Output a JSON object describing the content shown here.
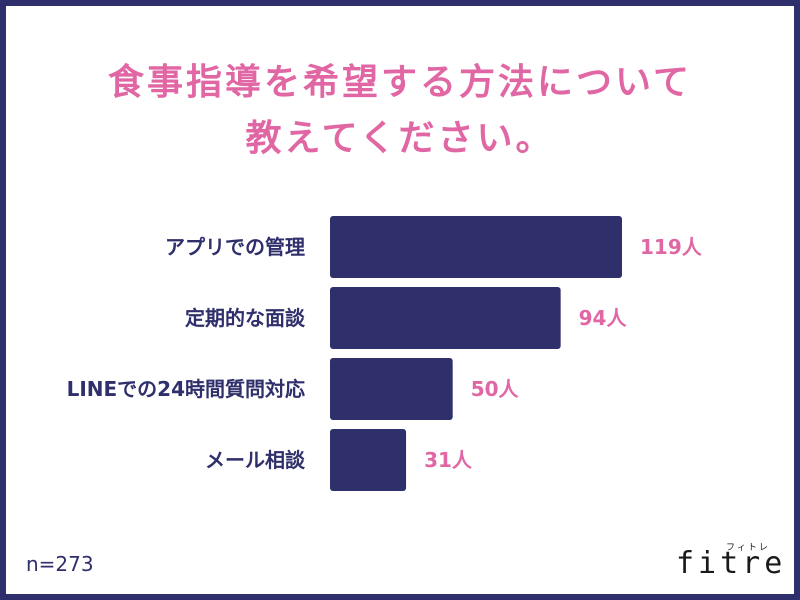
{
  "title_lines": [
    "食事指導を希望する方法について",
    "教えてください。"
  ],
  "sample_size": "n=273",
  "logo": {
    "word": "fitre",
    "ruby": "フィトレ"
  },
  "colors": {
    "bar": "#2f2f6b",
    "label": "#2f2f6b",
    "value": "#e066a4",
    "title": "#e066a4",
    "border": "#2f2f6b"
  },
  "chart_data": {
    "type": "bar",
    "orientation": "horizontal",
    "categories": [
      "アプリでの管理",
      "定期的な面談",
      "LINEでの24時間質問対応",
      "メール相談"
    ],
    "values": [
      119,
      94,
      50,
      31
    ],
    "value_labels": [
      "119人",
      "94人",
      "50人",
      "31人"
    ],
    "title": "食事指導を希望する方法について教えてください。",
    "grid": false,
    "legend": "none"
  }
}
